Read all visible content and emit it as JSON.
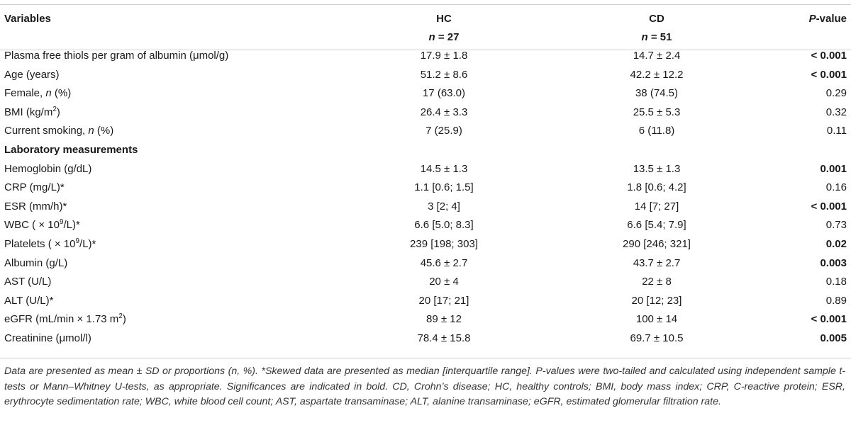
{
  "header": {
    "variables": "Variables",
    "hc": "HC",
    "cd": "CD",
    "p_italic": "P",
    "p_rest": "-value",
    "hc_n_label": "n",
    "hc_n_value": " = 27",
    "cd_n_label": "n",
    "cd_n_value": " = 51"
  },
  "rows": [
    {
      "label": "Plasma free thiols per gram of albumin (μmol/g)",
      "hc": "17.9 ± 1.8",
      "cd": "14.7 ± 2.4",
      "p": "< 0.001",
      "p_bold": true
    },
    {
      "label": "Age (years)",
      "hc": "51.2 ± 8.6",
      "cd": "42.2 ± 12.2",
      "p": "< 0.001",
      "p_bold": true
    },
    {
      "label_pre": "Female, ",
      "label_it": "n",
      "label_post": " (%)",
      "hc": "17 (63.0)",
      "cd": "38 (74.5)",
      "p": "0.29",
      "p_bold": false
    },
    {
      "label_pre": "BMI (kg/m",
      "label_sup": "2",
      "label_post": ")",
      "hc": "26.4 ± 3.3",
      "cd": "25.5 ± 5.3",
      "p": "0.32",
      "p_bold": false
    },
    {
      "label_pre": "Current smoking, ",
      "label_it": "n",
      "label_post": " (%)",
      "hc": "7 (25.9)",
      "cd": "6 (11.8)",
      "p": "0.11",
      "p_bold": false
    }
  ],
  "section_title": "Laboratory measurements",
  "lab_rows": [
    {
      "label": "Hemoglobin (g/dL)",
      "hc": "14.5 ± 1.3",
      "cd": "13.5 ± 1.3",
      "p": "0.001",
      "p_bold": true
    },
    {
      "label": "CRP (mg/L)*",
      "hc": "1.1 [0.6; 1.5]",
      "cd": "1.8 [0.6; 4.2]",
      "p": "0.16",
      "p_bold": false
    },
    {
      "label": "ESR (mm/h)*",
      "hc": "3 [2; 4]",
      "cd": "14 [7; 27]",
      "p": "< 0.001",
      "p_bold": true
    },
    {
      "label_pre": "WBC ( × 10",
      "label_sup": "9",
      "label_post": "/L)*",
      "hc": "6.6 [5.0; 8.3]",
      "cd": "6.6 [5.4; 7.9]",
      "p": "0.73",
      "p_bold": false
    },
    {
      "label_pre": "Platelets ( × 10",
      "label_sup": "9",
      "label_post": "/L)*",
      "hc": "239 [198; 303]",
      "cd": "290 [246; 321]",
      "p": "0.02",
      "p_bold": true
    },
    {
      "label": "Albumin (g/L)",
      "hc": "45.6 ± 2.7",
      "cd": "43.7 ± 2.7",
      "p": "0.003",
      "p_bold": true
    },
    {
      "label": "AST (U/L)",
      "hc": "20 ± 4",
      "cd": "22 ± 8",
      "p": "0.18",
      "p_bold": false
    },
    {
      "label": "ALT (U/L)*",
      "hc": "20 [17; 21]",
      "cd": "20 [12; 23]",
      "p": "0.89",
      "p_bold": false
    },
    {
      "label_pre": "eGFR (mL/min × 1.73 m",
      "label_sup": "2",
      "label_post": ")",
      "hc": "89 ± 12",
      "cd": "100 ± 14",
      "p": "< 0.001",
      "p_bold": true
    },
    {
      "label": "Creatinine (μmol/l)",
      "hc": "78.4 ± 15.8",
      "cd": "69.7 ± 10.5",
      "p": "0.005",
      "p_bold": true
    }
  ],
  "footnote": "Data are presented as mean ± SD or proportions (n, %). *Skewed data are presented as median [interquartile range]. P-values were two-tailed and calculated using independent sample t-tests or Mann–Whitney U-tests, as appropriate. Significances are indicated in bold. CD, Crohn’s disease; HC, healthy controls; BMI, body mass index; CRP, C-reactive protein; ESR, erythrocyte sedimentation rate; WBC, white blood cell count; AST, aspartate transaminase; ALT, alanine transaminase; eGFR, estimated glomerular filtration rate."
}
